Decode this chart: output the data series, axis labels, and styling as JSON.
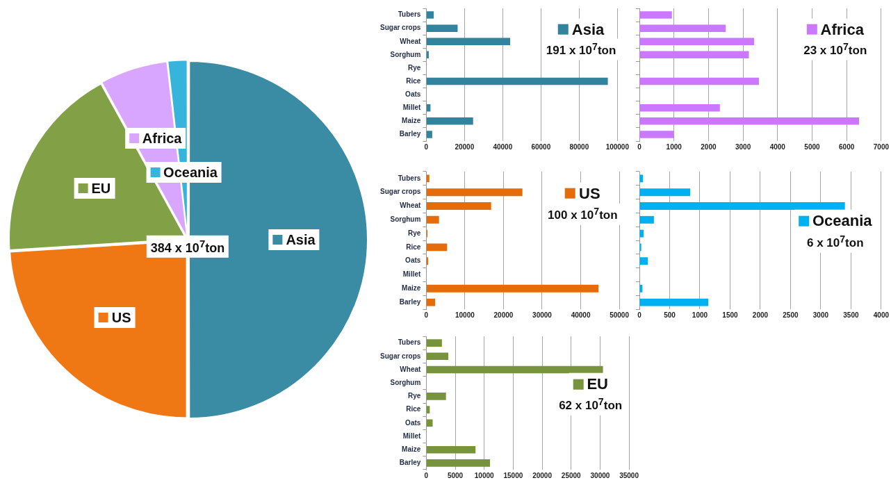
{
  "chart_data": [
    {
      "type": "pie",
      "categories": [
        "Asia",
        "US",
        "EU",
        "Africa",
        "Oceania"
      ],
      "values": [
        50,
        24,
        18,
        6.2,
        1.8
      ],
      "colors": [
        "#3a8ca5",
        "#f07814",
        "#82a046",
        "#d9a6ff",
        "#36b4dc"
      ],
      "legend": "center",
      "annotations": [
        "384 x 10$^{7}$ton"
      ]
    },
    {
      "type": "bar",
      "orientation": "horizontal",
      "title": "Asia",
      "subtitle": "191 x 10$^{7}$ton",
      "categories": [
        "Tubers",
        "Sugar crops",
        "Wheat",
        "Sorghum",
        "Rye",
        "Rice",
        "Oats",
        "Millet",
        "Maize",
        "Barley"
      ],
      "values": [
        3900,
        16400,
        43900,
        1300,
        0,
        95000,
        0,
        2200,
        24500,
        3100
      ],
      "color": "#31849b",
      "xlim": [
        0,
        100000
      ],
      "xticks": [
        0,
        20000,
        40000,
        60000,
        80000,
        100000
      ],
      "grid": "x"
    },
    {
      "type": "bar",
      "orientation": "horizontal",
      "title": "Africa",
      "subtitle": "23 x 10$^{7}$ton",
      "categories": [
        null,
        null,
        null,
        null,
        null,
        null,
        null,
        null,
        null,
        null
      ],
      "values": [
        940,
        2500,
        3320,
        3170,
        0,
        3460,
        0,
        2330,
        6360,
        1000
      ],
      "color": "#cc77ff",
      "xlim": [
        0,
        7000
      ],
      "xticks": [
        0,
        1000,
        2000,
        3000,
        4000,
        5000,
        6000,
        7000
      ],
      "grid": "x"
    },
    {
      "type": "bar",
      "orientation": "horizontal",
      "title": "US",
      "subtitle": "100 x 10$^{7}$ton",
      "categories": [
        "Tubers",
        "Sugar crops",
        "Wheat",
        "Sorghum",
        "Rye",
        "Rice",
        "Oats",
        "Millet",
        "Maize",
        "Barley"
      ],
      "values": [
        800,
        24900,
        16800,
        3300,
        300,
        5400,
        500,
        0,
        44600,
        2300
      ],
      "color": "#e46c0a",
      "xlim": [
        0,
        50000
      ],
      "xticks": [
        0,
        10000,
        20000,
        30000,
        40000,
        50000
      ],
      "grid": "x"
    },
    {
      "type": "bar",
      "orientation": "horizontal",
      "title": "Oceania",
      "subtitle": "6 x 10$^{7}$ton",
      "categories": [
        null,
        null,
        null,
        null,
        null,
        null,
        null,
        null,
        null,
        null
      ],
      "values": [
        60,
        840,
        3400,
        240,
        70,
        30,
        140,
        0,
        50,
        1140
      ],
      "color": "#00b0f0",
      "xlim": [
        0,
        4000
      ],
      "xticks": [
        0,
        500,
        1000,
        1500,
        2000,
        2500,
        3000,
        3500,
        4000
      ],
      "grid": "x"
    },
    {
      "type": "bar",
      "orientation": "horizontal",
      "title": "EU",
      "subtitle": "62 x 10$^{7}$ton",
      "categories": [
        "Tubers",
        "Sugar crops",
        "Wheat",
        "Sorghum",
        "Rye",
        "Rice",
        "Oats",
        "Millet",
        "Maize",
        "Barley"
      ],
      "values": [
        2700,
        3800,
        30500,
        0,
        3400,
        600,
        1100,
        0,
        8500,
        11000
      ],
      "color": "#77933c",
      "xlim": [
        0,
        35000
      ],
      "xticks": [
        0,
        5000,
        10000,
        15000,
        20000,
        25000,
        30000,
        35000
      ],
      "grid": "x"
    }
  ]
}
